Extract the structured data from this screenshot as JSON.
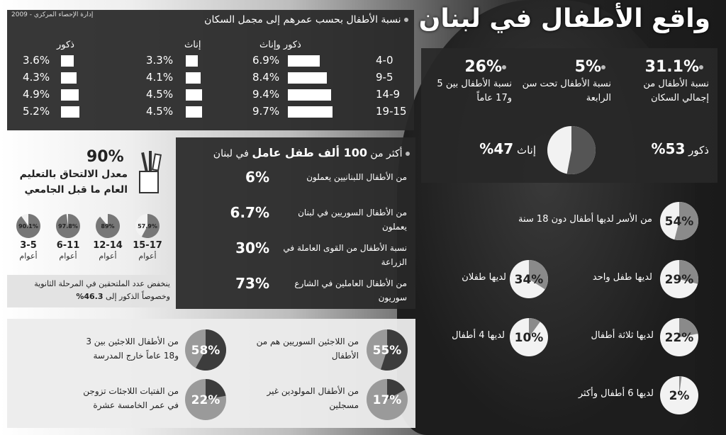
{
  "title": "واقع الأطفال في لبنان",
  "source": "إدارة الإحصاء المركزي - 2009",
  "age_table": {
    "heading": "نسبة الأطفال بحسب عمرهم إلى مجمل السكان",
    "col_total": "ذكور وإناث",
    "col_female": "إناث",
    "col_male": "ذكور",
    "rows": [
      {
        "age": "4-0",
        "total": "6.9%",
        "female": "3.3%",
        "male": "3.6%",
        "total_v": 6.9,
        "female_v": 3.3,
        "male_v": 3.6
      },
      {
        "age": "9-5",
        "total": "8.4%",
        "female": "4.1%",
        "male": "4.3%",
        "total_v": 8.4,
        "female_v": 4.1,
        "male_v": 4.3
      },
      {
        "age": "14-9",
        "total": "9.4%",
        "female": "4.5%",
        "male": "4.9%",
        "total_v": 9.4,
        "female_v": 4.5,
        "male_v": 4.9
      },
      {
        "age": "19-15",
        "total": "9.7%",
        "female": "4.5%",
        "male": "5.2%",
        "total_v": 9.7,
        "female_v": 4.5,
        "male_v": 5.2
      }
    ]
  },
  "stats_top": [
    {
      "value": "31.1%",
      "label": "نسبة الأطفال من إجمالي السكان"
    },
    {
      "value": "5%",
      "label": "نسبة الأطفال تحت سن الرابعة"
    },
    {
      "value": "26%",
      "label": "نسبة الأطفال بين 5 و17 عاماً"
    }
  ],
  "gender_pie": {
    "male_label": "ذكور",
    "male_value": "53%",
    "female_label": "إناث",
    "female_value": "47%",
    "male_v": 53
  },
  "working": {
    "heading_pre": "أكثر من",
    "heading_bold": "100 ألف طفل عامل",
    "heading_post": "في لبنان",
    "items": [
      {
        "value": "6%",
        "label": "من الأطفال اللبنانيين يعملون"
      },
      {
        "value": "6.7%",
        "label": "من الأطفال السوريين في لبنان يعملون"
      },
      {
        "value": "30%",
        "label": "نسبة الأطفال من القوى العاملة في الزراعة"
      },
      {
        "value": "73%",
        "label": "من الأطفال العاملين في الشارع سوريون"
      }
    ]
  },
  "education": {
    "value": "90%",
    "label": "معدل الالتحاق بالتعليم العام ما قبل الجامعي",
    "groups": [
      {
        "pct": "57.9%",
        "v": 57.9,
        "age": "15-17",
        "unit": "أعوام"
      },
      {
        "pct": "89%",
        "v": 89,
        "age": "12-14",
        "unit": "أعوام"
      },
      {
        "pct": "97.8%",
        "v": 97.8,
        "age": "6-11",
        "unit": "أعوام"
      },
      {
        "pct": "90.1%",
        "v": 90.1,
        "age": "3-5",
        "unit": "أعوام"
      }
    ],
    "note": "ينخفض عدد الملتحقين في المرحلة الثانوية وخصوصاً الذكور إلى",
    "note_value": "46.3%"
  },
  "families": [
    {
      "value": "54%",
      "v": 54,
      "label": "من الأسر لديها أطفال دون 18 سنة"
    },
    {
      "value": "29%",
      "v": 29,
      "label": "لديها طفل واحد"
    },
    {
      "value": "34%",
      "v": 34,
      "label": "لديها طفلان"
    },
    {
      "value": "22%",
      "v": 22,
      "label": "لديها ثلاثة أطفال"
    },
    {
      "value": "10%",
      "v": 10,
      "label": "لديها 4 أطفال"
    },
    {
      "value": "2%",
      "v": 2,
      "label": "لديها 6 أطفال وأكثر"
    }
  ],
  "refugees": [
    {
      "value": "55%",
      "v": 55,
      "label": "من اللاجئين السوريين هم من الأطفال"
    },
    {
      "value": "58%",
      "v": 58,
      "label": "من الأطفال اللاجئين بين 3 و18 عاماً خارج المدرسة"
    },
    {
      "value": "17%",
      "v": 17,
      "label": "من الأطفال المولودين غير مسجلين"
    },
    {
      "value": "22%",
      "v": 22,
      "label": "من الفتيات اللاجئات تزوجن في عمر الخامسة عشرة"
    }
  ],
  "colors": {
    "dark_panel": "#2a2a2a",
    "pie_dark": "#555555",
    "pie_light": "#f2f2f2"
  }
}
